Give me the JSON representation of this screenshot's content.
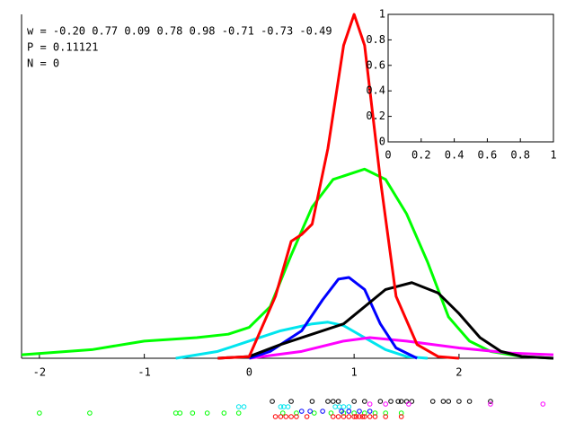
{
  "chart_data": [
    {
      "type": "line",
      "annotations": [
        "w = -0.20 0.77 0.09 0.78 0.98 -0.71 -0.73 -0.49",
        "P = 0.11121",
        "N = 0"
      ],
      "xlim": [
        -2.17,
        2.9
      ],
      "ylim": [
        0,
        1
      ],
      "xticks": [
        -2,
        -1,
        0,
        1,
        2
      ],
      "series": [
        {
          "color": "#00ff00",
          "x": [
            -2.17,
            -1.5,
            -1,
            -0.5,
            -0.2,
            0,
            0.2,
            0.4,
            0.6,
            0.8,
            1.1,
            1.3,
            1.5,
            1.7,
            1.9,
            2.1,
            2.3,
            2.6,
            2.9
          ],
          "values": [
            0.01,
            0.025,
            0.05,
            0.06,
            0.07,
            0.09,
            0.15,
            0.3,
            0.44,
            0.52,
            0.55,
            0.52,
            0.42,
            0.28,
            0.12,
            0.05,
            0.02,
            0.005,
            0
          ]
        },
        {
          "color": "#00e5ee",
          "x": [
            -0.7,
            -0.3,
            0,
            0.3,
            0.6,
            0.75,
            0.9,
            1.1,
            1.3,
            1.5,
            1.7
          ],
          "values": [
            0,
            0.02,
            0.05,
            0.08,
            0.1,
            0.105,
            0.095,
            0.06,
            0.025,
            0.005,
            0
          ]
        },
        {
          "color": "#ff00ff",
          "x": [
            0,
            0.5,
            0.9,
            1.15,
            1.5,
            2,
            2.5,
            2.9
          ],
          "values": [
            0,
            0.02,
            0.05,
            0.06,
            0.05,
            0.03,
            0.015,
            0.01
          ]
        },
        {
          "color": "#0000ff",
          "x": [
            0,
            0.2,
            0.5,
            0.7,
            0.85,
            0.95,
            1.1,
            1.25,
            1.4,
            1.6
          ],
          "values": [
            0,
            0.02,
            0.08,
            0.17,
            0.23,
            0.235,
            0.2,
            0.1,
            0.03,
            0
          ]
        },
        {
          "color": "#000000",
          "x": [
            -0.3,
            0,
            0.3,
            0.6,
            0.9,
            1.1,
            1.3,
            1.55,
            1.8,
            2.0,
            2.2,
            2.4,
            2.6,
            2.9
          ],
          "values": [
            0,
            0.005,
            0.04,
            0.07,
            0.1,
            0.15,
            0.2,
            0.22,
            0.19,
            0.13,
            0.06,
            0.02,
            0.005,
            0
          ]
        },
        {
          "color": "#ff0000",
          "x": [
            -0.3,
            0,
            0.25,
            0.4,
            0.5,
            0.6,
            0.75,
            0.9,
            1.0,
            1.1,
            1.25,
            1.4,
            1.6,
            1.8,
            2.0
          ],
          "values": [
            0,
            0.005,
            0.18,
            0.34,
            0.36,
            0.39,
            0.61,
            0.91,
            1.0,
            0.91,
            0.52,
            0.18,
            0.04,
            0.005,
            0
          ]
        }
      ],
      "rug": [
        {
          "color": "#00ff00",
          "x": [
            -2.0,
            -1.52,
            -0.7,
            -0.66,
            -0.54,
            -0.4,
            -0.24,
            -0.1,
            0.32,
            0.45,
            0.62,
            0.78,
            0.9,
            1.0,
            1.1,
            1.2,
            1.3,
            1.45
          ]
        },
        {
          "color": "#000000",
          "x": [
            0.22,
            0.4,
            0.6,
            0.75,
            0.8,
            0.85,
            1.0,
            1.1,
            1.25,
            1.35,
            1.42,
            1.45,
            1.5,
            1.55,
            1.75,
            1.85,
            1.9,
            2.0,
            2.1,
            2.3
          ]
        },
        {
          "color": "#00e5ee",
          "x": [
            -0.1,
            -0.05,
            0.3,
            0.33,
            0.37,
            0.82,
            0.86,
            0.9,
            0.95
          ]
        },
        {
          "color": "#ff0000",
          "x": [
            0.25,
            0.3,
            0.35,
            0.4,
            0.45,
            0.55,
            0.8,
            0.85,
            0.9,
            0.95,
            1.0,
            1.02,
            1.05,
            1.08,
            1.1,
            1.15,
            1.2,
            1.3,
            1.45
          ]
        },
        {
          "color": "#0000ff",
          "x": [
            0.5,
            0.58,
            0.7,
            0.88,
            0.95,
            1.05,
            1.15
          ]
        },
        {
          "color": "#ff00ff",
          "x": [
            1.15,
            1.3,
            1.52,
            2.3,
            2.8
          ]
        }
      ]
    },
    {
      "type": "empty",
      "xlim": [
        0,
        1
      ],
      "ylim": [
        0,
        1
      ],
      "xticks": [
        0,
        0.2,
        0.4,
        0.6,
        0.8,
        1
      ],
      "yticks": [
        0,
        0.2,
        0.4,
        0.6,
        0.8,
        1
      ]
    }
  ]
}
